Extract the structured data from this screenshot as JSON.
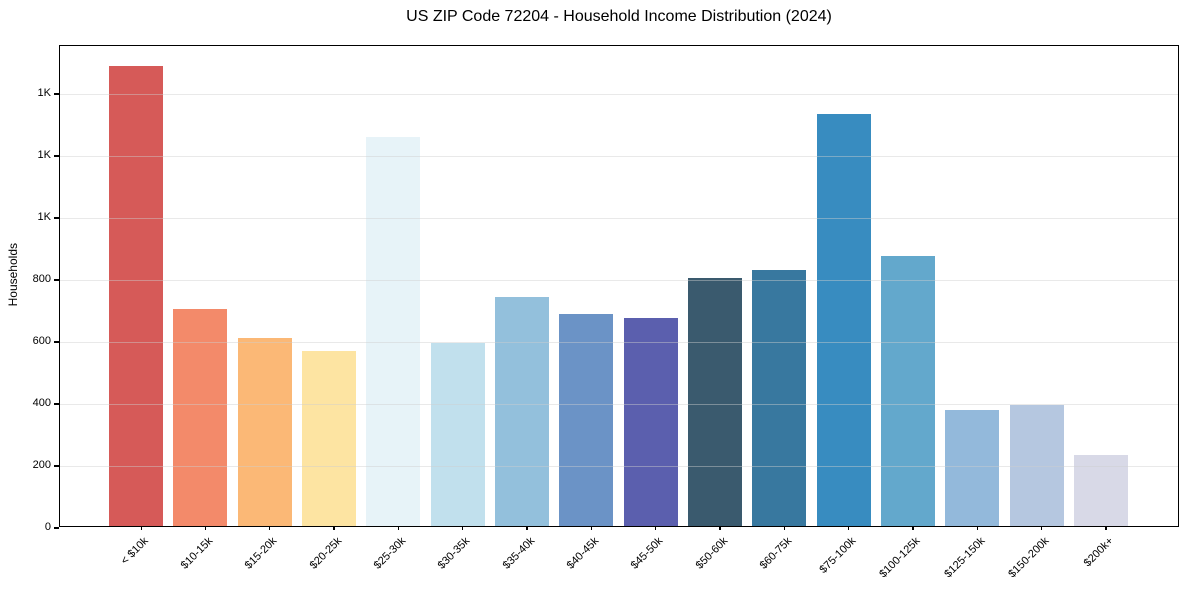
{
  "chart_data": {
    "type": "bar",
    "title": "US ZIP Code 72204 - Household Income Distribution (2024)",
    "xlabel": "",
    "ylabel": "Households",
    "categories": [
      "< $10k",
      "$10-15k",
      "$15-20k",
      "$20-25k",
      "$25-30k",
      "$30-35k",
      "$35-40k",
      "$40-45k",
      "$45-50k",
      "$50-60k",
      "$60-75k",
      "$75-100k",
      "$100-125k",
      "$125-150k",
      "$150-200k",
      "$200k+"
    ],
    "values": [
      1485,
      700,
      605,
      565,
      1255,
      590,
      740,
      685,
      670,
      800,
      825,
      1330,
      870,
      375,
      390,
      230
    ],
    "bar_colors": [
      "#d65a58",
      "#f38a6a",
      "#fbb876",
      "#fde4a2",
      "#e7f3f8",
      "#c1e0ed",
      "#93c0dc",
      "#6b93c6",
      "#5b5fae",
      "#3a5a6e",
      "#38789f",
      "#388cc0",
      "#63a8cc",
      "#93b9db",
      "#b5c7e0",
      "#d8d9e7"
    ],
    "ylim": [
      0,
      1555
    ],
    "yticks": [
      {
        "value": 0,
        "label": "0"
      },
      {
        "value": 200,
        "label": "200"
      },
      {
        "value": 400,
        "label": "400"
      },
      {
        "value": 600,
        "label": "600"
      },
      {
        "value": 800,
        "label": "800"
      },
      {
        "value": 1000,
        "label": "1K"
      },
      {
        "value": 1200,
        "label": "1K"
      },
      {
        "value": 1400,
        "label": "1K"
      }
    ],
    "grid": "horizontal",
    "legend": "none",
    "xtick_rotation_deg": 45
  },
  "colors": {
    "background": "#ffffff",
    "spine": "#000000",
    "grid": "#cfcfcf",
    "text": "#000000"
  }
}
